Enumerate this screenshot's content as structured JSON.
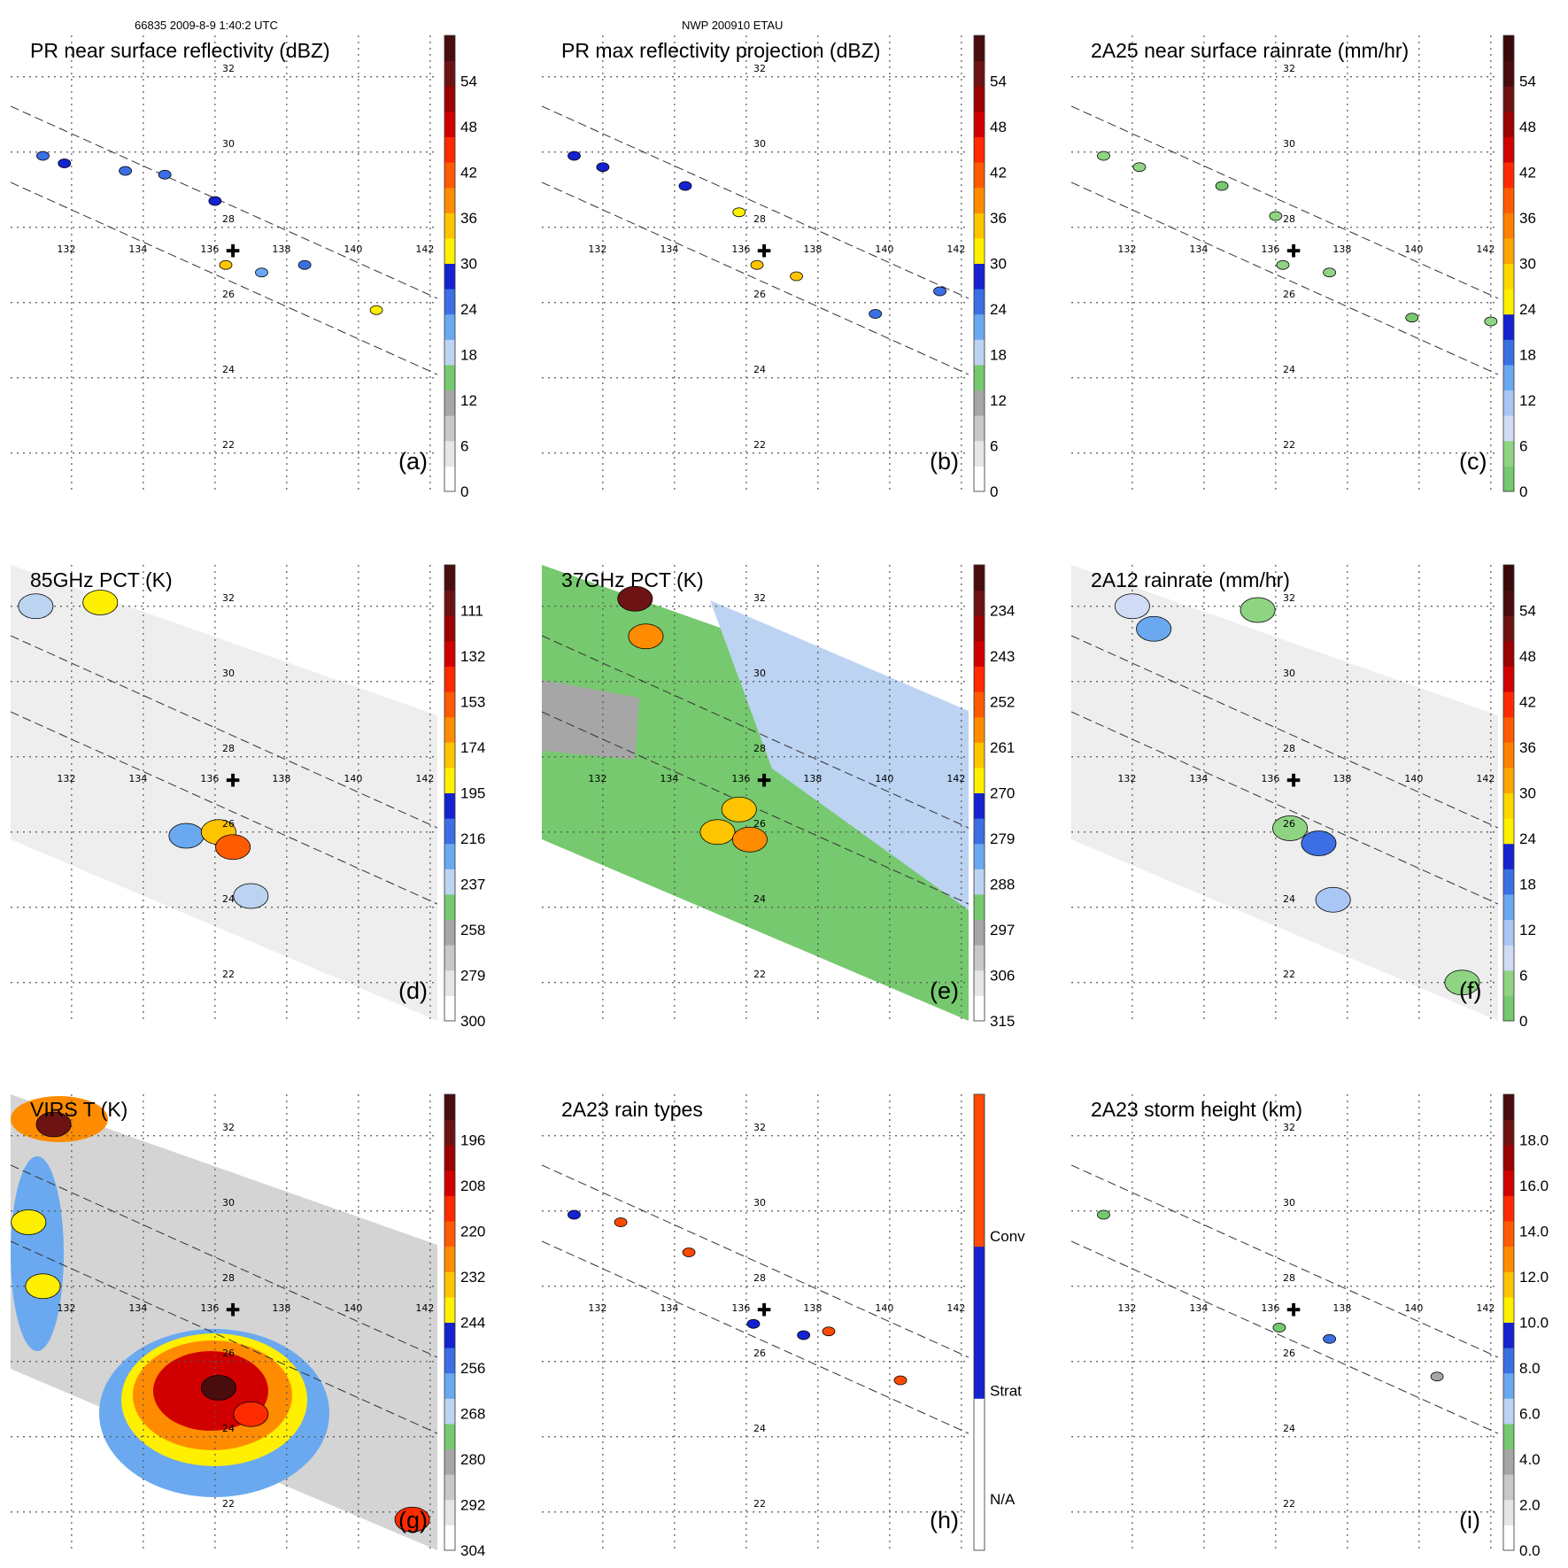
{
  "header": {
    "orbit_label": "66835 2009-8-9 1:40:2 UTC",
    "storm_label": "NWP 200910 ETAU"
  },
  "grid": {
    "longitudes": [
      "132",
      "134",
      "136",
      "138",
      "140",
      "142"
    ],
    "latitudes": [
      "22",
      "24",
      "26",
      "28",
      "30",
      "32"
    ]
  },
  "storm_center": {
    "lon": 136.5,
    "lat": 27.4,
    "symbol": "✚"
  },
  "chart_data": [
    {
      "id": "a",
      "type": "heatmap",
      "letter": "(a)",
      "title": "PR near surface reflectivity (dBZ)",
      "units": "dBZ",
      "swath": "pr",
      "colorbar": {
        "labels": [
          "0",
          "6",
          "12",
          "18",
          "24",
          "30",
          "36",
          "42",
          "48",
          "54"
        ],
        "colors": [
          "#ffffff",
          "#e6e6e6",
          "#c8c8c8",
          "#a6a6a6",
          "#76c96e",
          "#bcd3f2",
          "#6aa9ef",
          "#3b6fe3",
          "#1423cf",
          "#ffef00",
          "#ffc400",
          "#ff8c00",
          "#ff5b00",
          "#ff2a00",
          "#d10000",
          "#9d0000",
          "#6e1313",
          "#4a0d0d"
        ]
      },
      "features": [
        {
          "lon": 131.2,
          "lat": 29.9,
          "v": 22
        },
        {
          "lon": 131.8,
          "lat": 29.7,
          "v": 24
        },
        {
          "lon": 133.5,
          "lat": 29.5,
          "v": 22
        },
        {
          "lon": 134.6,
          "lat": 29.4,
          "v": 22
        },
        {
          "lon": 136.0,
          "lat": 28.7,
          "v": 26
        },
        {
          "lon": 136.3,
          "lat": 27.0,
          "v": 30
        },
        {
          "lon": 137.3,
          "lat": 26.8,
          "v": 18
        },
        {
          "lon": 138.5,
          "lat": 27.0,
          "v": 22
        },
        {
          "lon": 140.5,
          "lat": 25.8,
          "v": 28
        }
      ]
    },
    {
      "id": "b",
      "type": "heatmap",
      "letter": "(b)",
      "title": "PR max reflectivity projection (dBZ)",
      "units": "dBZ",
      "swath": "pr",
      "colorbar": {
        "labels": [
          "0",
          "6",
          "12",
          "18",
          "24",
          "30",
          "36",
          "42",
          "48",
          "54"
        ],
        "colors": [
          "#ffffff",
          "#e6e6e6",
          "#c8c8c8",
          "#a6a6a6",
          "#76c96e",
          "#bcd3f2",
          "#6aa9ef",
          "#3b6fe3",
          "#1423cf",
          "#ffef00",
          "#ffc400",
          "#ff8c00",
          "#ff5b00",
          "#ff2a00",
          "#d10000",
          "#9d0000",
          "#6e1313",
          "#4a0d0d"
        ]
      },
      "features": [
        {
          "lon": 131.2,
          "lat": 29.9,
          "v": 26
        },
        {
          "lon": 132.0,
          "lat": 29.6,
          "v": 24
        },
        {
          "lon": 134.3,
          "lat": 29.1,
          "v": 24
        },
        {
          "lon": 135.8,
          "lat": 28.4,
          "v": 28
        },
        {
          "lon": 136.3,
          "lat": 27.0,
          "v": 32
        },
        {
          "lon": 137.4,
          "lat": 26.7,
          "v": 30
        },
        {
          "lon": 139.6,
          "lat": 25.7,
          "v": 22
        },
        {
          "lon": 141.4,
          "lat": 26.3,
          "v": 22
        }
      ]
    },
    {
      "id": "c",
      "type": "heatmap",
      "letter": "(c)",
      "title": "2A25 near surface rainrate (mm/hr)",
      "units": "mm/hr",
      "swath": "pr",
      "colorbar": {
        "labels": [
          "0",
          "6",
          "12",
          "18",
          "24",
          "30",
          "36",
          "42",
          "48",
          "54"
        ],
        "colors": [
          "#76c96e",
          "#8fd483",
          "#d0dcf5",
          "#a9c6f5",
          "#6aa9ef",
          "#3b6fe3",
          "#1423cf",
          "#ffef00",
          "#ffd600",
          "#ffa500",
          "#ff8000",
          "#ff5b00",
          "#ff2a00",
          "#d10000",
          "#9d0000",
          "#6e1313",
          "#4a0d0d",
          "#3a0a0a"
        ]
      },
      "features": [
        {
          "lon": 131.2,
          "lat": 29.9,
          "v": 4
        },
        {
          "lon": 132.2,
          "lat": 29.6,
          "v": 3
        },
        {
          "lon": 134.5,
          "lat": 29.1,
          "v": 2
        },
        {
          "lon": 136.0,
          "lat": 28.3,
          "v": 4
        },
        {
          "lon": 136.2,
          "lat": 27.0,
          "v": 5
        },
        {
          "lon": 137.5,
          "lat": 26.8,
          "v": 4
        },
        {
          "lon": 139.8,
          "lat": 25.6,
          "v": 2
        },
        {
          "lon": 142.0,
          "lat": 25.5,
          "v": 3
        }
      ]
    },
    {
      "id": "d",
      "type": "heatmap",
      "letter": "(d)",
      "title": "85GHz PCT (K)",
      "units": "K",
      "swath": "tmi",
      "colorbar": {
        "labels": [
          "300",
          "279",
          "258",
          "237",
          "216",
          "195",
          "174",
          "153",
          "132",
          "111"
        ],
        "colors": [
          "#ffffff",
          "#e6e6e6",
          "#c8c8c8",
          "#a6a6a6",
          "#76c96e",
          "#bcd3f2",
          "#6aa9ef",
          "#3b6fe3",
          "#1423cf",
          "#ffef00",
          "#ffc400",
          "#ff8c00",
          "#ff5b00",
          "#ff2a00",
          "#d10000",
          "#9d0000",
          "#6e1313",
          "#4a0d0d"
        ]
      },
      "features": [
        {
          "lon": 132.8,
          "lat": 32.1,
          "v": 200
        },
        {
          "lon": 131.0,
          "lat": 32.0,
          "v": 240
        },
        {
          "lon": 135.2,
          "lat": 25.9,
          "v": 230
        },
        {
          "lon": 136.1,
          "lat": 26.0,
          "v": 190
        },
        {
          "lon": 136.5,
          "lat": 25.6,
          "v": 170
        },
        {
          "lon": 137.0,
          "lat": 24.3,
          "v": 240
        }
      ]
    },
    {
      "id": "e",
      "type": "heatmap",
      "letter": "(e)",
      "title": "37GHz PCT (K)",
      "units": "K",
      "swath": "tmi",
      "colorbar": {
        "labels": [
          "315",
          "306",
          "297",
          "288",
          "279",
          "270",
          "261",
          "252",
          "243",
          "234"
        ],
        "colors": [
          "#ffffff",
          "#e6e6e6",
          "#c8c8c8",
          "#a6a6a6",
          "#76c96e",
          "#bcd3f2",
          "#6aa9ef",
          "#3b6fe3",
          "#1423cf",
          "#ffef00",
          "#ffc400",
          "#ff8c00",
          "#ff5b00",
          "#ff2a00",
          "#d10000",
          "#9d0000",
          "#6e1313",
          "#4a0d0d"
        ]
      },
      "features": [
        {
          "lon": 132.9,
          "lat": 32.2,
          "v": 240
        },
        {
          "lon": 133.2,
          "lat": 31.2,
          "v": 265
        },
        {
          "lon": 135.2,
          "lat": 26.0,
          "v": 268
        },
        {
          "lon": 136.1,
          "lat": 25.8,
          "v": 262
        },
        {
          "lon": 135.8,
          "lat": 26.6,
          "v": 270
        }
      ]
    },
    {
      "id": "f",
      "type": "heatmap",
      "letter": "(f)",
      "title": "2A12 rainrate (mm/hr)",
      "units": "mm/hr",
      "swath": "tmi",
      "colorbar": {
        "labels": [
          "0",
          "6",
          "12",
          "18",
          "24",
          "30",
          "36",
          "42",
          "48",
          "54"
        ],
        "colors": [
          "#76c96e",
          "#8fd483",
          "#d0dcf5",
          "#a9c6f5",
          "#6aa9ef",
          "#3b6fe3",
          "#1423cf",
          "#ffef00",
          "#ffd600",
          "#ffa500",
          "#ff8000",
          "#ff5b00",
          "#ff2a00",
          "#d10000",
          "#9d0000",
          "#6e1313",
          "#4a0d0d",
          "#3a0a0a"
        ]
      },
      "features": [
        {
          "lon": 132.0,
          "lat": 32.0,
          "v": 6
        },
        {
          "lon": 132.6,
          "lat": 31.4,
          "v": 14
        },
        {
          "lon": 135.5,
          "lat": 31.9,
          "v": 4
        },
        {
          "lon": 136.4,
          "lat": 26.1,
          "v": 4
        },
        {
          "lon": 137.2,
          "lat": 25.7,
          "v": 16
        },
        {
          "lon": 137.6,
          "lat": 24.2,
          "v": 10
        },
        {
          "lon": 141.2,
          "lat": 22.0,
          "v": 4
        }
      ]
    },
    {
      "id": "g",
      "type": "heatmap",
      "letter": "(g)",
      "title": "VIRS T (K)",
      "units": "K",
      "swath": "tmi",
      "colorbar": {
        "labels": [
          "304",
          "292",
          "280",
          "268",
          "256",
          "244",
          "232",
          "220",
          "208",
          "196"
        ],
        "colors": [
          "#ffffff",
          "#e6e6e6",
          "#c8c8c8",
          "#a6a6a6",
          "#76c96e",
          "#bcd3f2",
          "#6aa9ef",
          "#3b6fe3",
          "#1423cf",
          "#ffef00",
          "#ffc400",
          "#ff8c00",
          "#ff5b00",
          "#ff2a00",
          "#d10000",
          "#9d0000",
          "#6e1313",
          "#4a0d0d"
        ]
      },
      "features": [
        {
          "lon": 131.5,
          "lat": 32.3,
          "v": 208
        },
        {
          "lon": 130.8,
          "lat": 29.7,
          "v": 250
        },
        {
          "lon": 131.2,
          "lat": 28.0,
          "v": 246
        },
        {
          "lon": 136.1,
          "lat": 25.3,
          "v": 200
        },
        {
          "lon": 137.0,
          "lat": 24.6,
          "v": 225
        },
        {
          "lon": 141.5,
          "lat": 21.8,
          "v": 225
        }
      ]
    },
    {
      "id": "h",
      "type": "heatmap",
      "letter": "(h)",
      "title": "2A23 rain types",
      "units": "",
      "swath": "pr",
      "colorbar": {
        "labels": [
          "N/A",
          "Strat",
          "Conv"
        ],
        "colors": [
          "#ffffff",
          "#1423cf",
          "#ff4a00"
        ]
      },
      "features": [
        {
          "lon": 131.2,
          "lat": 29.9,
          "v": 1
        },
        {
          "lon": 132.5,
          "lat": 29.7,
          "v": 2
        },
        {
          "lon": 134.4,
          "lat": 28.9,
          "v": 2
        },
        {
          "lon": 136.2,
          "lat": 27.0,
          "v": 1
        },
        {
          "lon": 137.6,
          "lat": 26.7,
          "v": 1
        },
        {
          "lon": 138.3,
          "lat": 26.8,
          "v": 2
        },
        {
          "lon": 140.3,
          "lat": 25.5,
          "v": 2
        }
      ]
    },
    {
      "id": "i",
      "type": "heatmap",
      "letter": "(i)",
      "title": "2A23 storm height (km)",
      "units": "km",
      "swath": "pr",
      "colorbar": {
        "labels": [
          "0.0",
          "2.0",
          "4.0",
          "6.0",
          "8.0",
          "10.0",
          "12.0",
          "14.0",
          "16.0",
          "18.0"
        ],
        "colors": [
          "#ffffff",
          "#e6e6e6",
          "#c8c8c8",
          "#a6a6a6",
          "#76c96e",
          "#bcd3f2",
          "#6aa9ef",
          "#3b6fe3",
          "#1423cf",
          "#ffef00",
          "#ffc400",
          "#ff8c00",
          "#ff5b00",
          "#ff2a00",
          "#d10000",
          "#9d0000",
          "#6e1313",
          "#4a0d0d"
        ]
      },
      "features": [
        {
          "lon": 131.2,
          "lat": 29.9,
          "v": 4
        },
        {
          "lon": 136.1,
          "lat": 26.9,
          "v": 4
        },
        {
          "lon": 137.5,
          "lat": 26.6,
          "v": 7
        },
        {
          "lon": 140.5,
          "lat": 25.6,
          "v": 3
        }
      ]
    }
  ]
}
